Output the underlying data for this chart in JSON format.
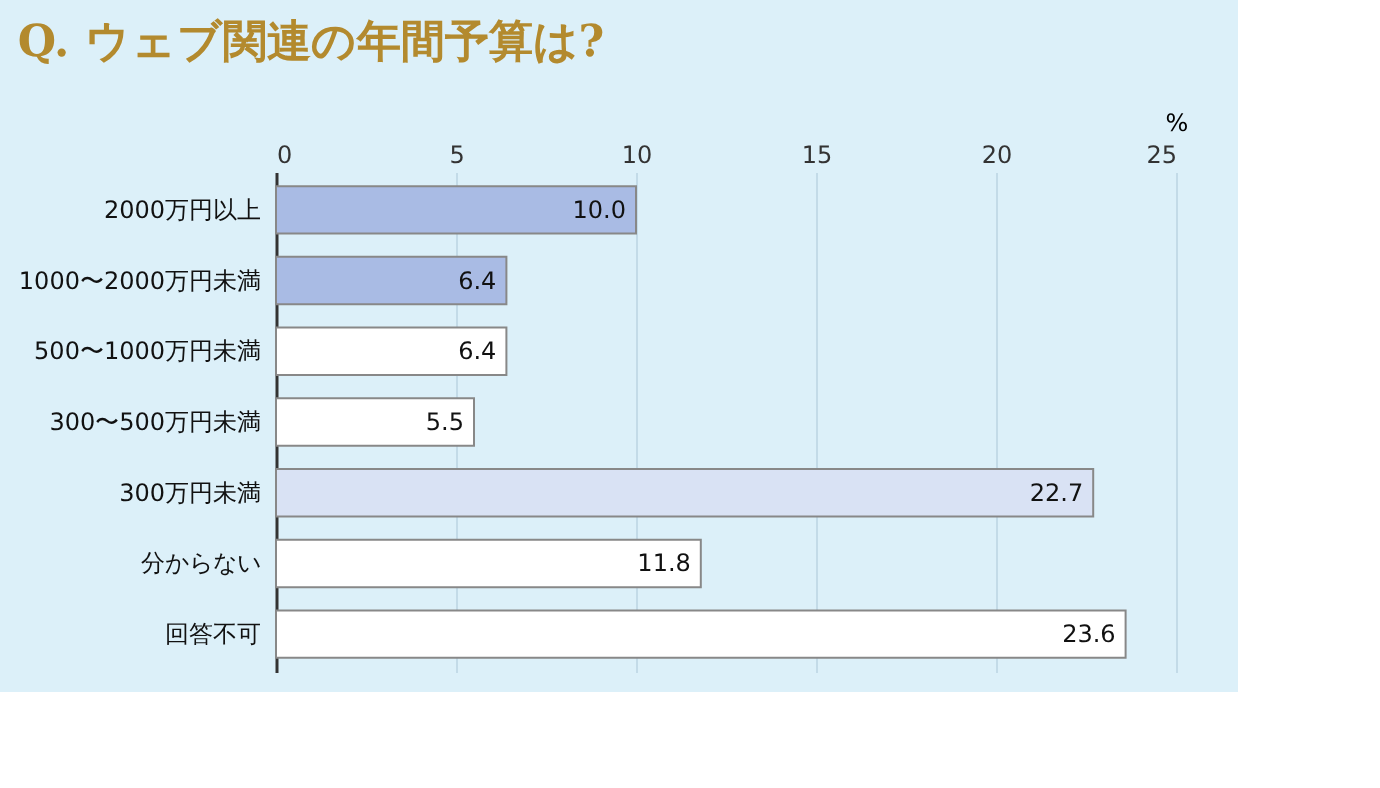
{
  "chart_data": {
    "type": "bar",
    "orientation": "horizontal",
    "title": "Q. ウェブ関連の年間予算は?",
    "xlabel": "%",
    "categories": [
      "2000万円以上",
      "1000〜2000万円未満",
      "500〜1000万円未満",
      "300〜500万円未満",
      "300万円未満",
      "分からない",
      "回答不可"
    ],
    "values": [
      10.0,
      6.4,
      6.4,
      5.5,
      22.7,
      11.8,
      23.6
    ],
    "value_labels": [
      "10.0",
      "6.4",
      "6.4",
      "5.5",
      "22.7",
      "11.8",
      "23.6"
    ],
    "colors": [
      "#a9bbe4",
      "#a9bbe4",
      "#ffffff",
      "#ffffff",
      "#d9e2f4",
      "#ffffff",
      "#ffffff"
    ],
    "xlim": [
      0,
      25
    ],
    "xticks": [
      0,
      5,
      10,
      15,
      20,
      25
    ],
    "grid": "x"
  }
}
